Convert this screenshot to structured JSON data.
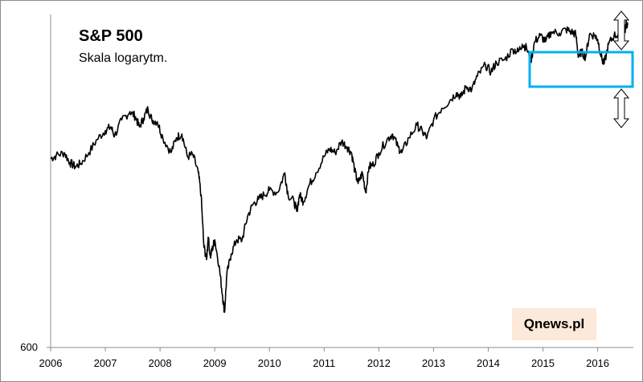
{
  "chart_data": {
    "type": "line",
    "title": "S&P 500",
    "subtitle": "Skala logarytm.",
    "y_scale": "log",
    "y_tick_labels": [
      "600"
    ],
    "x_tick_labels": [
      "2006",
      "2007",
      "2008",
      "2009",
      "2010",
      "2011",
      "2012",
      "2013",
      "2014",
      "2015",
      "2016"
    ],
    "xlim": [
      2006.0,
      2016.55
    ],
    "ylim": [
      600,
      2250
    ],
    "grid": false,
    "series": [
      {
        "values": [
          [
            2006.0,
            1270
          ],
          [
            2006.1,
            1285
          ],
          [
            2006.25,
            1300
          ],
          [
            2006.35,
            1250
          ],
          [
            2006.45,
            1230
          ],
          [
            2006.55,
            1245
          ],
          [
            2006.7,
            1300
          ],
          [
            2006.85,
            1370
          ],
          [
            2007.0,
            1420
          ],
          [
            2007.1,
            1440
          ],
          [
            2007.17,
            1390
          ],
          [
            2007.3,
            1480
          ],
          [
            2007.45,
            1530
          ],
          [
            2007.55,
            1500
          ],
          [
            2007.62,
            1440
          ],
          [
            2007.7,
            1490
          ],
          [
            2007.78,
            1550
          ],
          [
            2007.85,
            1480
          ],
          [
            2007.95,
            1470
          ],
          [
            2008.05,
            1380
          ],
          [
            2008.2,
            1300
          ],
          [
            2008.3,
            1380
          ],
          [
            2008.4,
            1400
          ],
          [
            2008.5,
            1280
          ],
          [
            2008.6,
            1290
          ],
          [
            2008.7,
            1200
          ],
          [
            2008.75,
            1100
          ],
          [
            2008.8,
            900
          ],
          [
            2008.85,
            850
          ],
          [
            2008.88,
            930
          ],
          [
            2008.92,
            860
          ],
          [
            2008.96,
            890
          ],
          [
            2009.0,
            920
          ],
          [
            2009.08,
            830
          ],
          [
            2009.14,
            740
          ],
          [
            2009.18,
            690
          ],
          [
            2009.22,
            800
          ],
          [
            2009.3,
            870
          ],
          [
            2009.4,
            920
          ],
          [
            2009.5,
            920
          ],
          [
            2009.6,
            1010
          ],
          [
            2009.7,
            1060
          ],
          [
            2009.8,
            1080
          ],
          [
            2009.9,
            1100
          ],
          [
            2010.0,
            1120
          ],
          [
            2010.15,
            1110
          ],
          [
            2010.28,
            1200
          ],
          [
            2010.34,
            1100
          ],
          [
            2010.45,
            1070
          ],
          [
            2010.5,
            1030
          ],
          [
            2010.55,
            1100
          ],
          [
            2010.62,
            1070
          ],
          [
            2010.72,
            1140
          ],
          [
            2010.85,
            1200
          ],
          [
            2011.0,
            1280
          ],
          [
            2011.1,
            1320
          ],
          [
            2011.2,
            1300
          ],
          [
            2011.32,
            1360
          ],
          [
            2011.42,
            1330
          ],
          [
            2011.5,
            1300
          ],
          [
            2011.56,
            1210
          ],
          [
            2011.62,
            1150
          ],
          [
            2011.7,
            1200
          ],
          [
            2011.76,
            1110
          ],
          [
            2011.82,
            1230
          ],
          [
            2011.9,
            1240
          ],
          [
            2012.0,
            1300
          ],
          [
            2012.15,
            1370
          ],
          [
            2012.25,
            1400
          ],
          [
            2012.35,
            1330
          ],
          [
            2012.42,
            1300
          ],
          [
            2012.55,
            1380
          ],
          [
            2012.7,
            1450
          ],
          [
            2012.8,
            1410
          ],
          [
            2012.88,
            1380
          ],
          [
            2013.0,
            1480
          ],
          [
            2013.15,
            1550
          ],
          [
            2013.3,
            1600
          ],
          [
            2013.42,
            1650
          ],
          [
            2013.5,
            1620
          ],
          [
            2013.6,
            1690
          ],
          [
            2013.7,
            1670
          ],
          [
            2013.8,
            1760
          ],
          [
            2013.95,
            1840
          ],
          [
            2014.05,
            1790
          ],
          [
            2014.15,
            1860
          ],
          [
            2014.3,
            1880
          ],
          [
            2014.45,
            1960
          ],
          [
            2014.55,
            1940
          ],
          [
            2014.62,
            2000
          ],
          [
            2014.7,
            1970
          ],
          [
            2014.78,
            1870
          ],
          [
            2014.85,
            2020
          ],
          [
            2014.95,
            2070
          ],
          [
            2015.05,
            2020
          ],
          [
            2015.15,
            2100
          ],
          [
            2015.3,
            2090
          ],
          [
            2015.42,
            2120
          ],
          [
            2015.52,
            2100
          ],
          [
            2015.6,
            2080
          ],
          [
            2015.65,
            1900
          ],
          [
            2015.7,
            1940
          ],
          [
            2015.78,
            1900
          ],
          [
            2015.85,
            2080
          ],
          [
            2015.95,
            2070
          ],
          [
            2016.0,
            2040
          ],
          [
            2016.08,
            1880
          ],
          [
            2016.12,
            1850
          ],
          [
            2016.2,
            2000
          ],
          [
            2016.3,
            2070
          ],
          [
            2016.4,
            2080
          ],
          [
            2016.46,
            2000
          ],
          [
            2016.52,
            2170
          ],
          [
            2016.55,
            2160
          ]
        ]
      }
    ]
  },
  "watermark": "Qnews.pl",
  "colors": {
    "line": "#000000",
    "highlight_box": "#00b0f0",
    "watermark_bg": "#fde9d9",
    "arrow": "#000000"
  },
  "annotations": [
    "highlight-box",
    "up-arrow-icon",
    "down-arrow-icon"
  ]
}
